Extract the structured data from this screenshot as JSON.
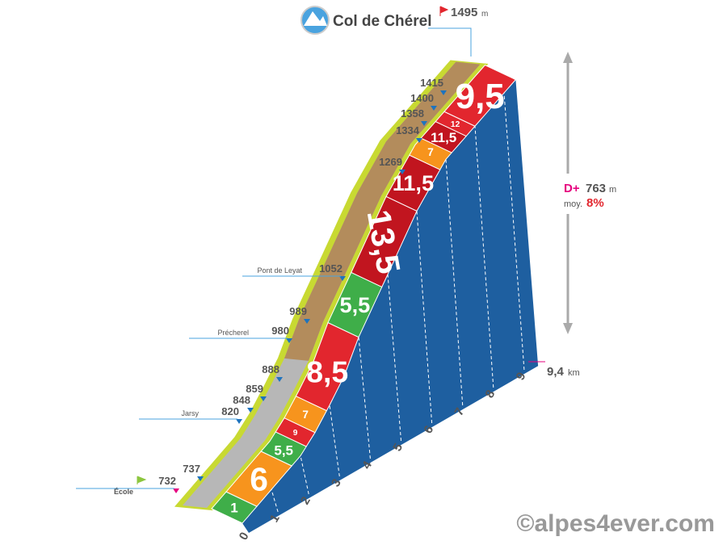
{
  "header": {
    "title": "Col de Chérel",
    "summit": "1495",
    "summit_unit": "m"
  },
  "markers": [
    {
      "elevation": "737"
    },
    {
      "elevation": "732",
      "place": "École"
    },
    {
      "elevation": "820",
      "place": "Jarsy"
    },
    {
      "elevation": "848"
    },
    {
      "elevation": "859"
    },
    {
      "elevation": "888"
    },
    {
      "elevation": "980",
      "place": "Précherel"
    },
    {
      "elevation": "989"
    },
    {
      "elevation": "1052",
      "place": "Pont de Leyat"
    },
    {
      "elevation": "1269"
    },
    {
      "elevation": "1334"
    },
    {
      "elevation": "1358"
    },
    {
      "elevation": "1400"
    },
    {
      "elevation": "1415"
    }
  ],
  "segments": [
    {
      "grade": "1",
      "color": "#3fae49"
    },
    {
      "grade": "6",
      "color": "#f7941d"
    },
    {
      "grade": "5,5",
      "color": "#3fae49"
    },
    {
      "grade": "9",
      "color": "#e2262e"
    },
    {
      "grade": "7",
      "color": "#f7941d"
    },
    {
      "grade": "8,5",
      "color": "#e2262e"
    },
    {
      "grade": "5,5",
      "color": "#3fae49"
    },
    {
      "grade": "13,5",
      "color": "#c1151f"
    },
    {
      "grade": "11,5",
      "color": "#c1151f"
    },
    {
      "grade": "7",
      "color": "#f7941d"
    },
    {
      "grade": "11,5",
      "color": "#c1151f"
    },
    {
      "grade": "12",
      "color": "#e2262e"
    },
    {
      "grade": "9,5",
      "color": "#e2262e"
    }
  ],
  "km_ticks": [
    "0",
    "1",
    "2",
    "3",
    "4",
    "5",
    "6",
    "7",
    "8",
    "9"
  ],
  "distance": {
    "value": "9,4",
    "unit": "km"
  },
  "gain": {
    "label": "D+",
    "value": "763",
    "unit": "m",
    "avg_label": "moy.",
    "avg": "8%"
  },
  "copyright": "©alpes4ever.com"
}
